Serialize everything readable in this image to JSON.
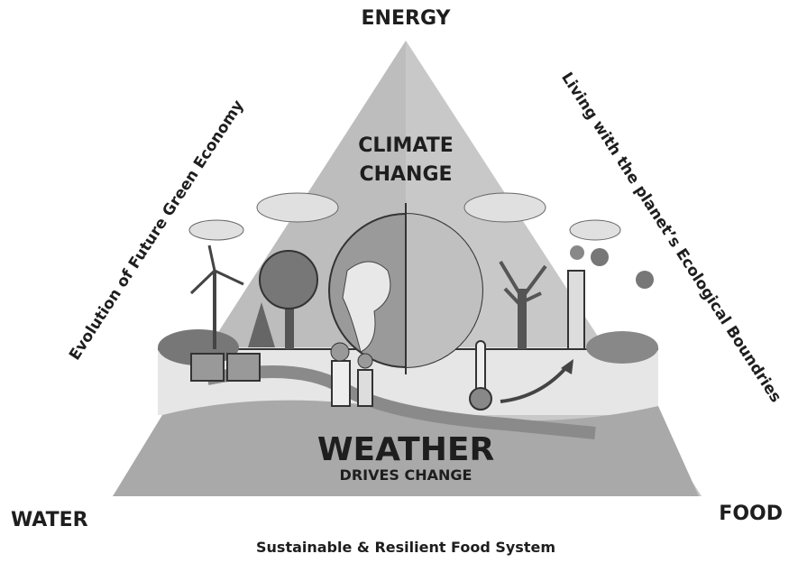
{
  "corners": {
    "top": "ENERGY",
    "left": "WATER",
    "right": "FOOD"
  },
  "center": {
    "title_lines": [
      "CLIMATE",
      "CHANGE"
    ],
    "headline": "WEATHER",
    "subheadline": "DRIVES CHANGE"
  },
  "sides": {
    "left": "Evolution of Future Green Economy",
    "right": "Living with the planet’s Ecological Boundries"
  },
  "footer": "Sustainable & Resilient Food System"
}
